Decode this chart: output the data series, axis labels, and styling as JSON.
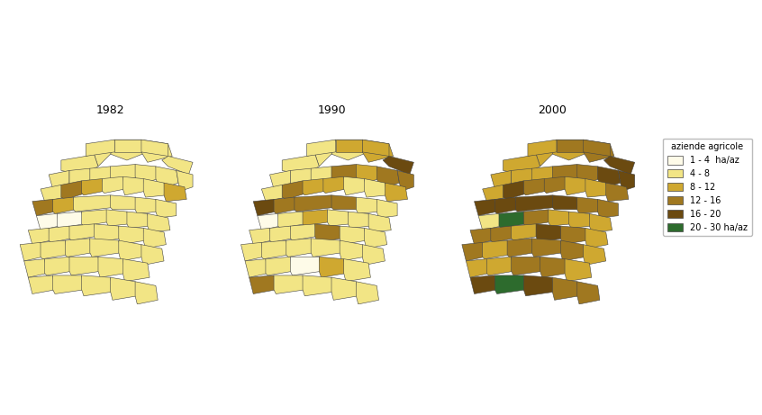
{
  "title_1982": "1982",
  "title_1990": "1990",
  "title_2000": "2000",
  "legend_title": "aziende agricole",
  "legend_labels": [
    "1 - 4  ha/az",
    "4 - 8",
    "8 - 12",
    "12 - 16",
    "16 - 20",
    "20 - 30 ha/az"
  ],
  "legend_colors": [
    "#FEFBE8",
    "#F2E585",
    "#CFA830",
    "#A07820",
    "#6B4A10",
    "#2D6B2D"
  ],
  "background_color": "#FFFFFF",
  "border_color": "#444444",
  "border_lw": 0.4,
  "title_fontsize": 9,
  "label_fontsize": 2.8,
  "legend_fontsize": 7
}
